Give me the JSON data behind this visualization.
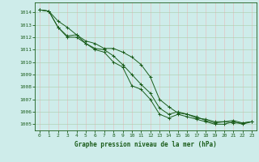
{
  "title": "Graphe pression niveau de la mer (hPa)",
  "background_color": "#ceecea",
  "grid_color_minor": "#c8e8e4",
  "grid_color_major": "#aaceca",
  "line_color": "#1a5c1a",
  "marker": "+",
  "ylim": [
    1004.5,
    1014.8
  ],
  "xlim": [
    -0.5,
    23.5
  ],
  "yticks": [
    1005,
    1006,
    1007,
    1008,
    1009,
    1010,
    1011,
    1012,
    1013,
    1014
  ],
  "xticks": [
    0,
    1,
    2,
    3,
    4,
    5,
    6,
    7,
    8,
    9,
    10,
    11,
    12,
    13,
    14,
    15,
    16,
    17,
    18,
    19,
    20,
    21,
    22,
    23
  ],
  "series": [
    [
      1014.2,
      1014.1,
      1013.3,
      1012.8,
      1012.2,
      1011.7,
      1011.5,
      1011.1,
      1011.1,
      1010.8,
      1010.4,
      1009.8,
      1008.8,
      1007.0,
      1006.4,
      1005.9,
      1005.8,
      1005.5,
      1005.4,
      1005.2,
      1005.2,
      1005.3,
      1005.1,
      1005.2
    ],
    [
      1014.2,
      1014.1,
      1012.8,
      1012.1,
      1012.2,
      1011.5,
      1011.1,
      1011.0,
      1010.5,
      1009.8,
      1009.0,
      1008.2,
      1007.5,
      1006.3,
      1005.8,
      1006.0,
      1005.8,
      1005.6,
      1005.3,
      1005.1,
      1005.2,
      1005.1,
      1005.1,
      1005.2
    ],
    [
      1014.2,
      1014.1,
      1012.8,
      1012.0,
      1012.0,
      1011.5,
      1011.0,
      1010.8,
      1010.0,
      1009.6,
      1008.1,
      1007.8,
      1007.0,
      1005.8,
      1005.5,
      1005.8,
      1005.6,
      1005.4,
      1005.2,
      1005.0,
      1005.0,
      1005.2,
      1005.0,
      1005.2
    ]
  ]
}
